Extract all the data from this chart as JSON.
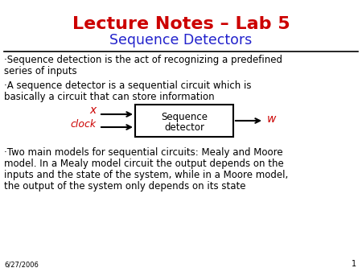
{
  "title": "Lecture Notes – Lab 5",
  "subtitle": "Sequence Detectors",
  "title_color": "#cc0000",
  "subtitle_color": "#2222cc",
  "bullet1_line1": "·Sequence detection is the act of recognizing a predefined",
  "bullet1_line2": "series of inputs",
  "bullet2_line1": "·A sequence detector is a sequential circuit which is",
  "bullet2_line2": "basically a circuit that can store information",
  "bullet3_line1": "·Two main models for sequential circuits: Mealy and Moore",
  "bullet3_line2": "model. In a Mealy model circuit the output depends on the",
  "bullet3_line3": "inputs and the state of the system, while in a Moore model,",
  "bullet3_line4": "the output of the system only depends on its state",
  "box_label_line1": "Sequence",
  "box_label_line2": "detector",
  "input_x": "x",
  "input_clock": "clock",
  "output_w": "w",
  "date_label": "6/27/2006",
  "page_num": "1",
  "text_color": "#000000",
  "red_color": "#cc0000",
  "bg_color": "#ffffff"
}
